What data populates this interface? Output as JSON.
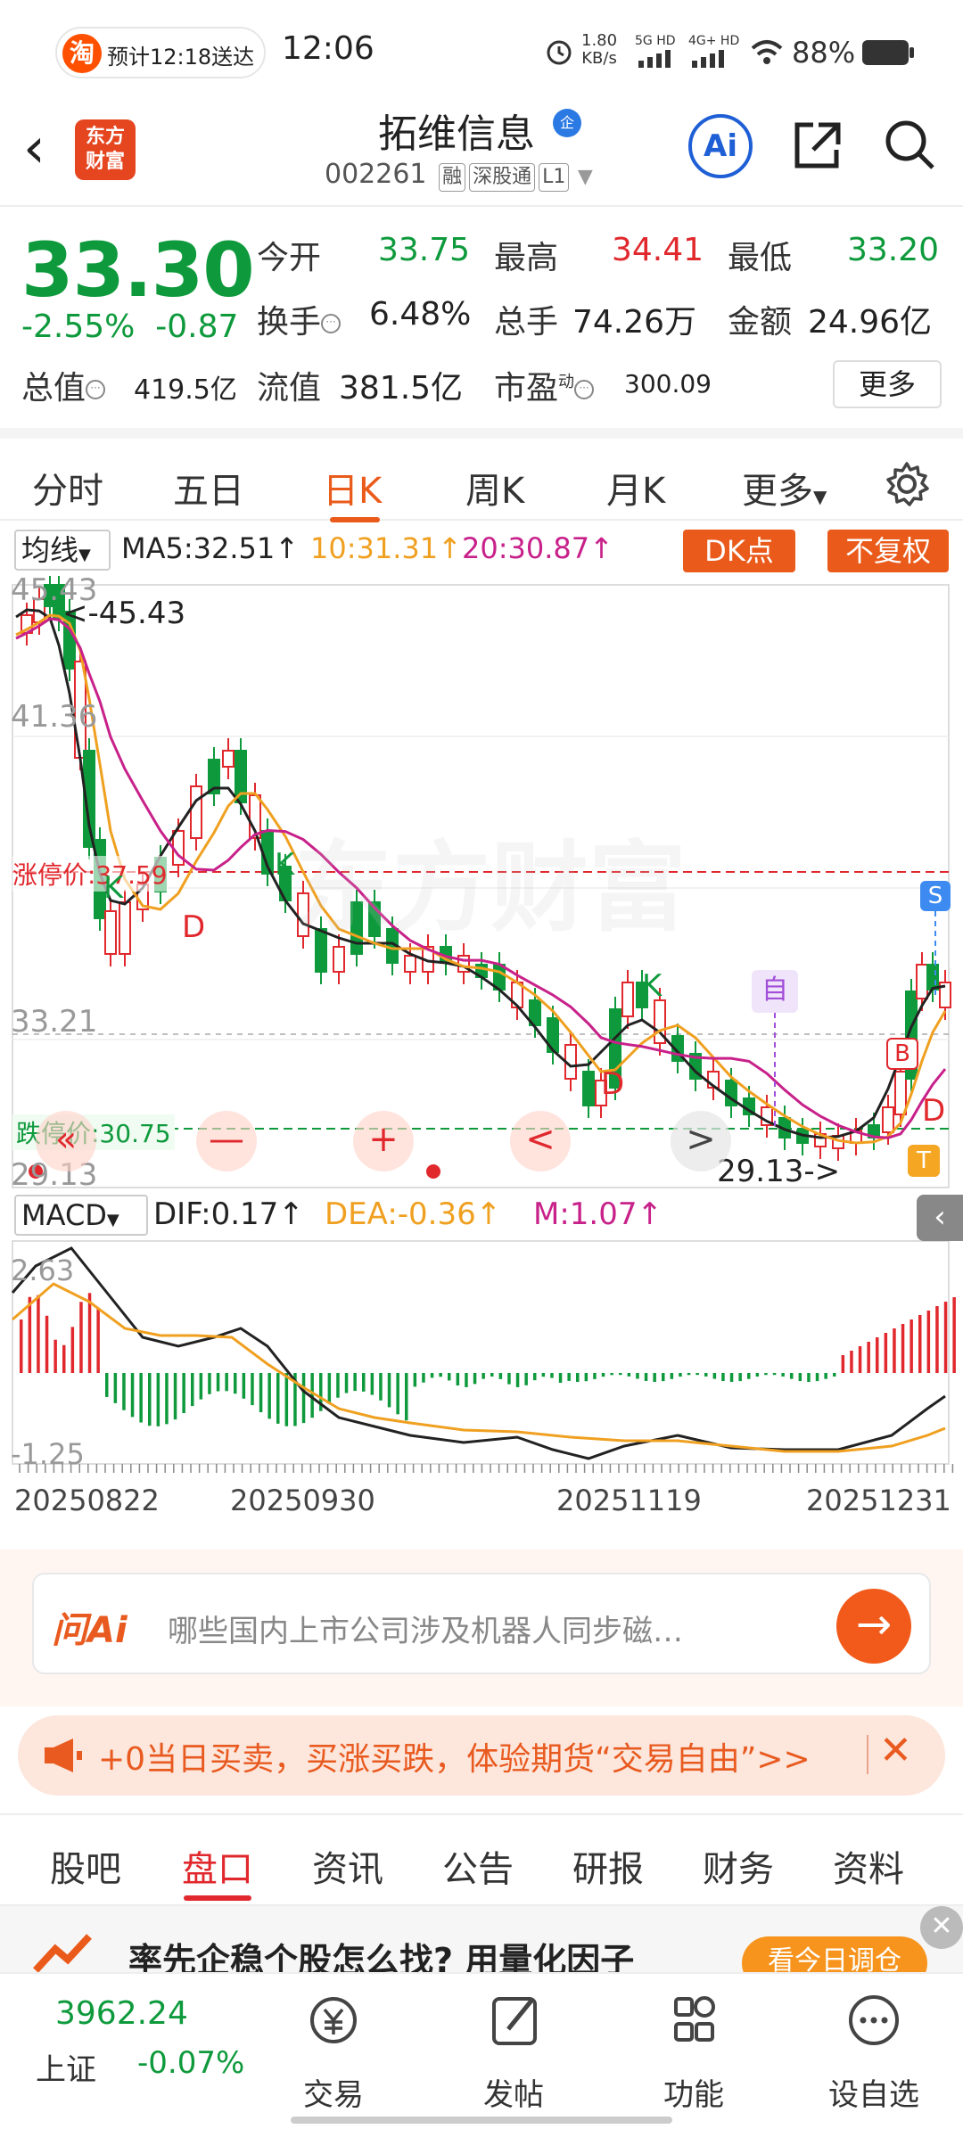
{
  "status_bar": {
    "delivery_text": "预计12:18送达",
    "taobao_icon": "淘",
    "time": "12:06",
    "net_speed_value": "1.80",
    "net_speed_unit": "KB/s",
    "signal1": "5G HD",
    "signal2": "4G+ HD",
    "battery": "88%"
  },
  "header": {
    "back_icon": "back-arrow-icon",
    "logo_text": "东方\n财富",
    "stock_name": "拓维信息",
    "badge": "企",
    "stock_code": "002261",
    "tags": [
      "融",
      "深股通",
      "L1"
    ],
    "ai_label": "Ai"
  },
  "quote": {
    "price": "33.30",
    "change_pct": "-2.55%",
    "change_amt": "-0.87",
    "open_label": "今开",
    "open": "33.75",
    "high_label": "最高",
    "high": "34.41",
    "low_label": "最低",
    "low": "33.20",
    "turnover_label": "换手",
    "turnover": "6.48%",
    "volume_label": "总手",
    "volume": "74.26万",
    "amount_label": "金额",
    "amount": "24.96亿",
    "mktcap_label": "总值",
    "mktcap": "419.5亿",
    "float_label": "流值",
    "float_cap": "381.5亿",
    "pe_label": "市盈",
    "pe_sup": "动",
    "pe": "300.09",
    "more": "更多"
  },
  "period_tabs": [
    "分时",
    "五日",
    "日K",
    "周K",
    "月K",
    "更多"
  ],
  "active_period": "日K",
  "ma_bar": {
    "selector": "均线",
    "ma5": "MA5:32.51",
    "ma10": "10:31.31",
    "ma20": "20:30.87",
    "dk_btn": "DK点",
    "fq_btn": "不复权"
  },
  "kline": {
    "y_labels": [
      "45.43",
      "41.36",
      "33.21",
      "29.13"
    ],
    "max_marker": "<-45.43",
    "min_marker": "29.13->",
    "limit_up": "涨停价:37.59",
    "limit_down": "跌停价:30.75",
    "signal_labels": [
      "K",
      "K",
      "D",
      "D",
      "K",
      "自",
      "S",
      "B",
      "D",
      "T"
    ],
    "nav_buttons": [
      "«",
      "—",
      "+",
      "<",
      ">"
    ],
    "watermark": "东方财富"
  },
  "macd_bar": {
    "selector": "MACD",
    "dif": "DIF:0.17",
    "dea": "DEA:-0.36",
    "m": "M:1.07"
  },
  "macd": {
    "y_labels": [
      "2.63",
      "-1.25"
    ],
    "x_dates": [
      "20250822",
      "20250930",
      "20251119",
      "20251231"
    ]
  },
  "colors": {
    "up": "#e0282d",
    "down": "#0e9a3c",
    "ma5": "#222222",
    "ma10": "#f0a020",
    "ma20": "#c8218a",
    "accent": "#ea5a1a"
  },
  "ask": {
    "logo": "问Ai",
    "placeholder": "哪些国内上市公司涉及机器人同步磁…",
    "go_icon": "arrow-right-icon"
  },
  "promo": {
    "text": "+0当日买卖，买涨买跌，体验期货“交易自由”>>",
    "close_icon": "close-icon"
  },
  "sub_tabs": [
    "股吧",
    "盘口",
    "资讯",
    "公告",
    "研报",
    "财务",
    "资料"
  ],
  "active_sub_tab": "盘口",
  "ad_text": "率先企稳个股怎么找?  用量化因子",
  "ad_btn": "看今日调仓",
  "bottom_bar": {
    "index_value": "3962.24",
    "index_name": "上证",
    "index_change": "-0.07%",
    "items": [
      "交易",
      "发帖",
      "功能",
      "设自选"
    ]
  }
}
